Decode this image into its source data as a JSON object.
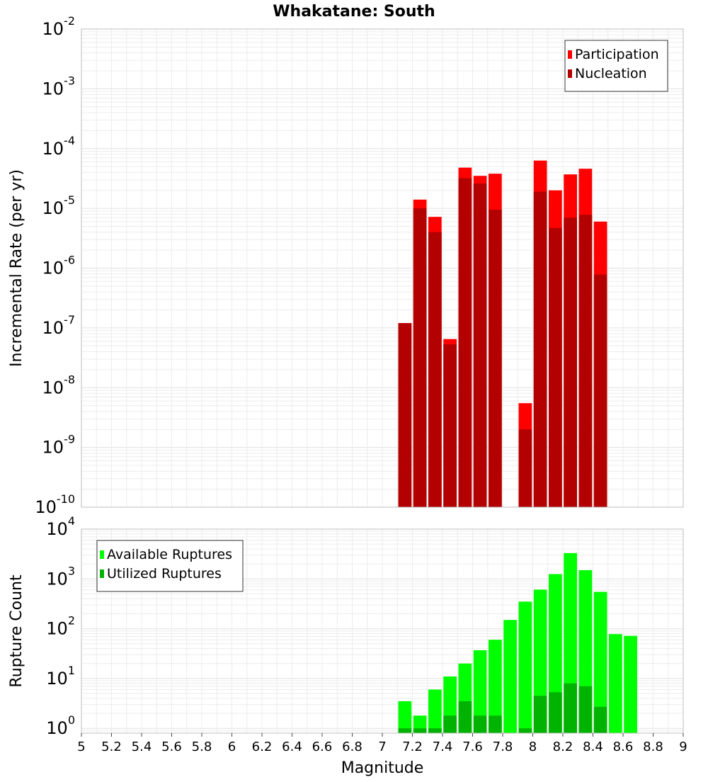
{
  "title": "Whakatane: South",
  "x_axis": {
    "label": "Magnitude",
    "range": [
      5,
      9
    ],
    "ticks": [
      "5",
      "5.2",
      "5.4",
      "5.6",
      "5.8",
      "6",
      "6.2",
      "6.4",
      "6.6",
      "6.8",
      "7",
      "7.2",
      "7.4",
      "7.6",
      "7.8",
      "8",
      "8.2",
      "8.4",
      "8.6",
      "8.8",
      "9"
    ]
  },
  "chart_data": [
    {
      "type": "bar",
      "ylabel": "Incremental Rate (per yr)",
      "xlabel": "",
      "yscale": "log",
      "ylim": [
        1e-10,
        0.01
      ],
      "y_ticks": [
        {
          "base": "10",
          "exp": "-10",
          "value": 1e-10
        },
        {
          "base": "10",
          "exp": "-9",
          "value": 1e-09
        },
        {
          "base": "10",
          "exp": "-8",
          "value": 1e-08
        },
        {
          "base": "10",
          "exp": "-7",
          "value": 1e-07
        },
        {
          "base": "10",
          "exp": "-6",
          "value": 1e-06
        },
        {
          "base": "10",
          "exp": "-5",
          "value": 1e-05
        },
        {
          "base": "10",
          "exp": "-4",
          "value": 0.0001
        },
        {
          "base": "10",
          "exp": "-3",
          "value": 0.001
        },
        {
          "base": "10",
          "exp": "-2",
          "value": 0.01
        }
      ],
      "grid": true,
      "legend_position": "top-right",
      "x": [
        7.15,
        7.25,
        7.35,
        7.45,
        7.55,
        7.65,
        7.75,
        7.85,
        7.95,
        8.05,
        8.15,
        8.25,
        8.35,
        8.45
      ],
      "series": [
        {
          "name": "Participation",
          "color": "#ff0000",
          "values": [
            1.2e-07,
            1.4e-05,
            7.2e-06,
            6.5e-08,
            4.8e-05,
            3.5e-05,
            3.8e-05,
            null,
            5.5e-09,
            6.3e-05,
            2e-05,
            3.7e-05,
            4.6e-05,
            6e-06
          ]
        },
        {
          "name": "Nucleation",
          "color": "#b30000",
          "values": [
            1.2e-07,
            1e-05,
            4e-06,
            5.3e-08,
            3.2e-05,
            2.6e-05,
            9.5e-06,
            null,
            2e-09,
            1.9e-05,
            4.7e-06,
            7e-06,
            7.8e-06,
            7.8e-07
          ]
        }
      ]
    },
    {
      "type": "bar",
      "ylabel": "Rupture Count",
      "xlabel": "Magnitude",
      "yscale": "log",
      "ylim": [
        0.8,
        10000
      ],
      "y_ticks": [
        {
          "base": "10",
          "exp": "0",
          "value": 1
        },
        {
          "base": "10",
          "exp": "1",
          "value": 10
        },
        {
          "base": "10",
          "exp": "2",
          "value": 100
        },
        {
          "base": "10",
          "exp": "3",
          "value": 1000
        },
        {
          "base": "10",
          "exp": "4",
          "value": 10000
        }
      ],
      "grid": true,
      "legend_position": "top-left",
      "x": [
        7.15,
        7.25,
        7.35,
        7.45,
        7.55,
        7.65,
        7.75,
        7.85,
        7.95,
        8.05,
        8.15,
        8.25,
        8.35,
        8.45,
        8.55,
        8.65
      ],
      "series": [
        {
          "name": "Available Ruptures",
          "color": "#00ff00",
          "values": [
            3.5,
            1.8,
            6,
            11,
            20,
            37,
            60,
            150,
            350,
            610,
            1250,
            3300,
            1500,
            550,
            78,
            72
          ]
        },
        {
          "name": "Utilized Ruptures",
          "color": "#00b300",
          "values": [
            1,
            1,
            1,
            1.8,
            3.5,
            1.8,
            1.8,
            null,
            1,
            4.5,
            5.3,
            8,
            7,
            2.7,
            null,
            null
          ]
        }
      ]
    }
  ]
}
